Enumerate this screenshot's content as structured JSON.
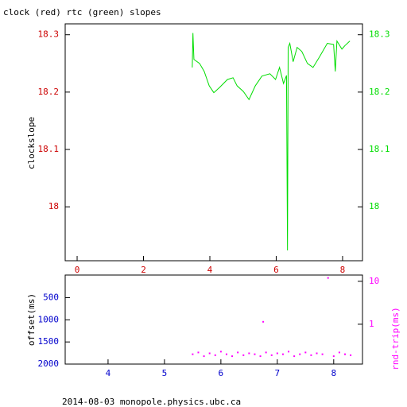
{
  "chart_data": [
    {
      "type": "line",
      "title": "clock (red) rtc (green) slopes",
      "y_label": "clockslope",
      "xlim": [
        -0.36,
        8.6
      ],
      "xticks": [
        0,
        2,
        4,
        6,
        8
      ],
      "xtick_color": "#cc0000",
      "ylim": [
        17.906,
        18.319
      ],
      "yticks": [
        18,
        18.1,
        18.2,
        18.3
      ],
      "ytick_color": "#cc0000",
      "y2lim": [
        17.906,
        18.319
      ],
      "y2ticks": [
        18,
        18.1,
        18.2,
        18.3
      ],
      "y2tick_color": "#00dd00",
      "series": [
        {
          "name": "rtc",
          "color": "#00dd00",
          "x": [
            3.47,
            3.49,
            3.52,
            3.69,
            3.83,
            3.98,
            4.12,
            4.29,
            4.53,
            4.7,
            4.82,
            5.01,
            5.18,
            5.37,
            5.57,
            5.81,
            5.98,
            6.1,
            6.22,
            6.31,
            6.34,
            6.36,
            6.41,
            6.51,
            6.63,
            6.77,
            6.94,
            7.11,
            7.3,
            7.54,
            7.73,
            7.78,
            7.83,
            7.98,
            8.07,
            8.22
          ],
          "values": [
            18.243,
            18.303,
            18.257,
            18.25,
            18.236,
            18.211,
            18.199,
            18.208,
            18.222,
            18.225,
            18.211,
            18.201,
            18.187,
            18.211,
            18.228,
            18.232,
            18.222,
            18.243,
            18.215,
            18.229,
            17.924,
            18.278,
            18.285,
            18.253,
            18.278,
            18.271,
            18.25,
            18.243,
            18.261,
            18.285,
            18.283,
            18.236,
            18.289,
            18.275,
            18.281,
            18.289
          ]
        }
      ]
    },
    {
      "type": "scatter",
      "y_label": "offset(ms)",
      "y2_label": "rnd-trip(ms)",
      "xlim": [
        3.24,
        8.51
      ],
      "xticks": [
        4,
        5,
        6,
        7,
        8
      ],
      "xtick_color": "#0000cc",
      "ylim": [
        2000,
        -12
      ],
      "yticks": [
        500,
        1000,
        1500,
        2000
      ],
      "ytick_color": "#0000cc",
      "y2lim": [
        0.118,
        14
      ],
      "y2ticks": [
        1,
        10
      ],
      "y2tick_color": "#ff00ff",
      "y2log": true,
      "series": [
        {
          "name": "rnd-trip",
          "color": "#ff00ff",
          "axis": "y2",
          "x": [
            5.5,
            5.6,
            5.7,
            5.8,
            5.9,
            6.0,
            6.1,
            6.2,
            6.3,
            6.4,
            6.5,
            6.6,
            6.7,
            6.75,
            6.8,
            6.9,
            7.0,
            7.1,
            7.2,
            7.3,
            7.4,
            7.5,
            7.6,
            7.7,
            7.8,
            7.9,
            8.0,
            8.1,
            8.2,
            8.3
          ],
          "values": [
            0.2,
            0.22,
            0.18,
            0.21,
            0.19,
            0.23,
            0.2,
            0.18,
            0.22,
            0.19,
            0.21,
            0.2,
            0.18,
            1.14,
            0.22,
            0.19,
            0.21,
            0.2,
            0.23,
            0.18,
            0.2,
            0.22,
            0.19,
            0.21,
            0.2,
            12,
            0.18,
            0.22,
            0.2,
            0.19
          ]
        }
      ]
    }
  ],
  "footer": "2014-08-03 monopole.physics.ubc.ca"
}
